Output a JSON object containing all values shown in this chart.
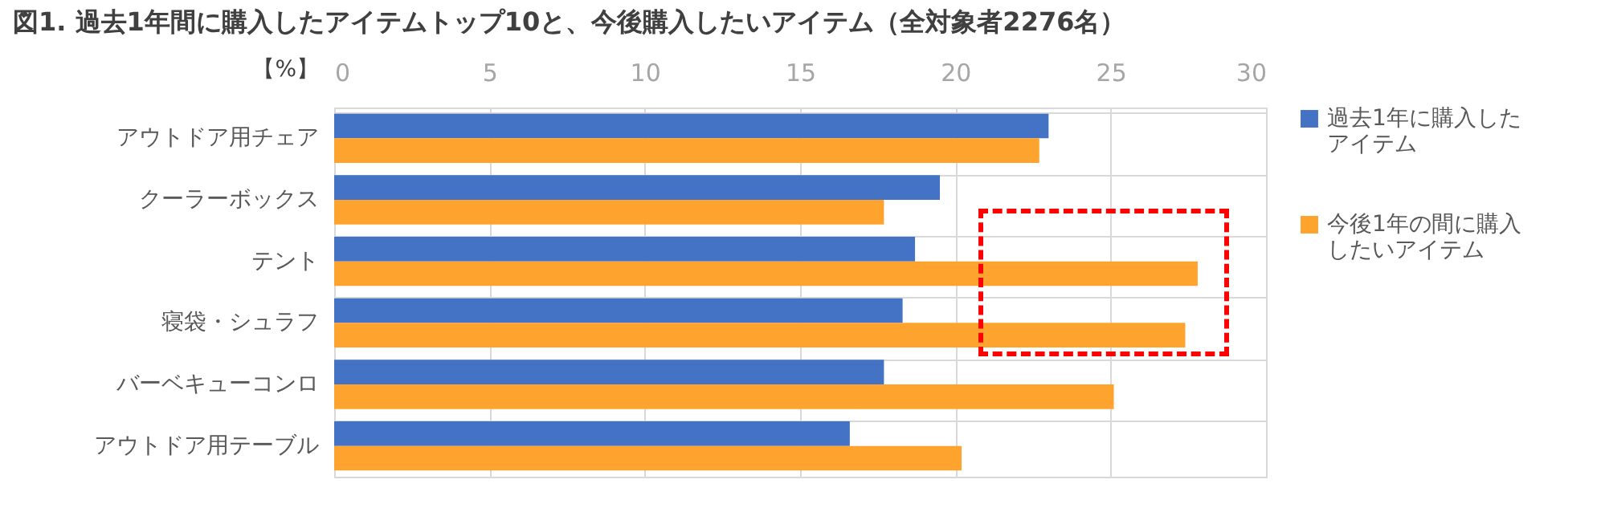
{
  "chart_data": {
    "type": "bar",
    "orientation": "horizontal",
    "title": "図1. 過去1年間に購入したアイテムトップ10と、今後購入したいアイテム（全対象者2276名）",
    "xlabel": "【%】",
    "categories": [
      "アウトドア用チェア",
      "クーラーボックス",
      "テント",
      "寝袋・シュラフ",
      "バーベキューコンロ",
      "アウトドア用テーブル"
    ],
    "series": [
      {
        "name": "過去1年に購入したアイテム",
        "color": "#4472c4",
        "values": [
          23.0,
          19.5,
          18.7,
          18.3,
          17.7,
          16.6
        ]
      },
      {
        "name": "今後1年の間に購入したいアイテム",
        "color": "#ffa32f",
        "values": [
          22.7,
          17.7,
          27.8,
          27.4,
          25.1,
          20.2
        ]
      }
    ],
    "xlim": [
      0,
      30
    ],
    "xticks": [
      0,
      5,
      10,
      15,
      20,
      25,
      30
    ],
    "grid": true,
    "legend": "right"
  }
}
